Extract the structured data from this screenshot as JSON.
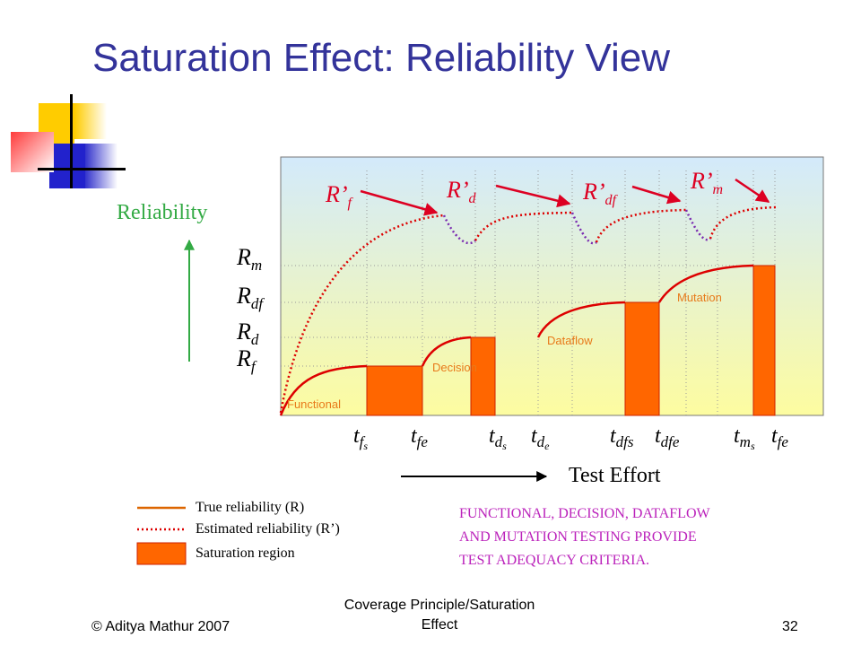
{
  "slide": {
    "title": "Saturation Effect: Reliability View",
    "footer_left": "© Aditya Mathur 2007",
    "footer_center_line1": "Coverage Principle/Saturation",
    "footer_center_line2": "Effect",
    "page_number": "32"
  },
  "diagram": {
    "y_axis_title": "Reliability",
    "x_axis_title": "Test Effort",
    "y_levels": [
      {
        "base": "R",
        "sub": "m"
      },
      {
        "base": "R",
        "sub": "df"
      },
      {
        "base": "R",
        "sub": "d"
      },
      {
        "base": "R",
        "sub": "f"
      }
    ],
    "x_ticks": [
      {
        "base": "t",
        "sub": "f",
        "subsub": "s"
      },
      {
        "base": "t",
        "sub": "fe",
        "subsub": ""
      },
      {
        "base": "t",
        "sub": "d",
        "subsub": "s"
      },
      {
        "base": "t",
        "sub": "d",
        "subsub": "e"
      },
      {
        "base": "t",
        "sub": "dfs",
        "subsub": ""
      },
      {
        "base": "t",
        "sub": "dfe",
        "subsub": ""
      },
      {
        "base": "t",
        "sub": "m",
        "subsub": "s"
      },
      {
        "base": "t",
        "sub": "fe",
        "subsub": ""
      }
    ],
    "estimate_labels": [
      {
        "base": "R’",
        "sub": "f"
      },
      {
        "base": "R’",
        "sub": "d"
      },
      {
        "base": "R’",
        "sub": "df"
      },
      {
        "base": "R’",
        "sub": "m"
      }
    ],
    "phase_labels": [
      "Functional",
      "Decision",
      "Dataflow",
      "Mutation"
    ],
    "legend": [
      {
        "label": "True reliability (R)",
        "style": "solid-line"
      },
      {
        "label": "Estimated reliability (R’)",
        "style": "dotted-line"
      },
      {
        "label": "Saturation region",
        "style": "filled-box"
      }
    ],
    "colors": {
      "true_line": "#dd0000",
      "estimate_line": "#dd0000",
      "estimate_dip": "#7a2bb0",
      "saturation_fill": "#ff6600",
      "arrow": "#dd0022",
      "y_label": "#33aa44",
      "phase_label": "#e87a1a",
      "note": "#bb22bb"
    }
  },
  "note": {
    "lines": [
      "FUNCTIONAL, DECISION, DATAFLOW",
      "AND MUTATION TESTING PROVIDE",
      "TEST ADEQUACY CRITERIA."
    ]
  }
}
